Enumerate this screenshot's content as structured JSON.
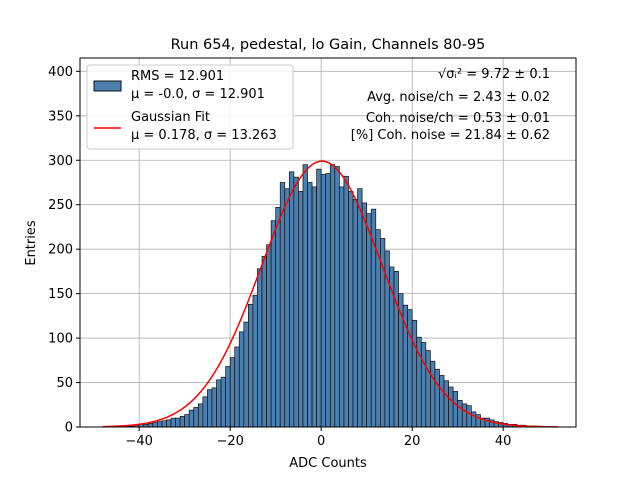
{
  "chart_data": {
    "type": "bar",
    "title": "Run 654, pedestal, lo Gain, Channels 80-95",
    "xlabel": "ADC Counts",
    "ylabel": "Entries",
    "xlim": [
      -53,
      56
    ],
    "ylim": [
      0,
      415
    ],
    "x_ticks": [
      -40,
      -20,
      0,
      20,
      40
    ],
    "y_ticks": [
      0,
      50,
      100,
      150,
      200,
      250,
      300,
      350,
      400
    ],
    "grid": true,
    "legend_position": "top-left",
    "bin_width": 1,
    "histogram": {
      "name": "RMS = 12.901",
      "label_line2": "μ = -0.0, σ = 12.901",
      "color": "#4a7fb0",
      "edge_color": "#111111",
      "bin_left_edges": [
        -48,
        -47,
        -46,
        -45,
        -44,
        -43,
        -42,
        -41,
        -40,
        -39,
        -38,
        -37,
        -36,
        -35,
        -34,
        -33,
        -32,
        -31,
        -30,
        -29,
        -28,
        -27,
        -26,
        -25,
        -24,
        -23,
        -22,
        -21,
        -20,
        -19,
        -18,
        -17,
        -16,
        -15,
        -14,
        -13,
        -12,
        -11,
        -10,
        -9,
        -8,
        -7,
        -6,
        -5,
        -4,
        -3,
        -2,
        -1,
        0,
        1,
        2,
        3,
        4,
        5,
        6,
        7,
        8,
        9,
        10,
        11,
        12,
        13,
        14,
        15,
        16,
        17,
        18,
        19,
        20,
        21,
        22,
        23,
        24,
        25,
        26,
        27,
        28,
        29,
        30,
        31,
        32,
        33,
        34,
        35,
        36,
        37,
        38,
        39,
        40,
        41,
        42,
        43,
        44,
        45,
        46,
        47,
        48,
        49,
        50,
        51
      ],
      "values": [
        0,
        0,
        0,
        0,
        0,
        1,
        1,
        2,
        3,
        3,
        4,
        5,
        6,
        7,
        8,
        10,
        10,
        12,
        14,
        19,
        22,
        26,
        34,
        42,
        44,
        53,
        56,
        68,
        78,
        90,
        107,
        118,
        138,
        148,
        178,
        192,
        205,
        232,
        247,
        275,
        268,
        287,
        281,
        265,
        295,
        275,
        270,
        290,
        284,
        285,
        295,
        293,
        270,
        282,
        265,
        256,
        268,
        252,
        240,
        245,
        222,
        212,
        198,
        180,
        175,
        150,
        137,
        132,
        120,
        101,
        95,
        86,
        74,
        65,
        58,
        52,
        45,
        40,
        30,
        26,
        24,
        17,
        14,
        10,
        10,
        8,
        6,
        5,
        4,
        3,
        3,
        2,
        2,
        1,
        1,
        1,
        0,
        0,
        0,
        0
      ]
    },
    "gaussian_fit": {
      "name": "Gaussian Fit",
      "label_line2": "μ = 0.178, σ = 13.263",
      "mu": 0.178,
      "sigma": 13.263,
      "amplitude": 299,
      "x_range": [
        -48,
        52
      ],
      "color": "#ff0000"
    },
    "annotations": [
      {
        "label": "√σᵢ²",
        "value": " = 9.72 ± 0.1"
      },
      {
        "label": "Avg. noise/ch",
        "value": " = 2.43 ± 0.02"
      },
      {
        "label": "Coh. noise/ch",
        "value": " = 0.53 ± 0.01"
      },
      {
        "label": "[%] Coh. noise",
        "value": " = 21.84 ± 0.62"
      }
    ]
  }
}
